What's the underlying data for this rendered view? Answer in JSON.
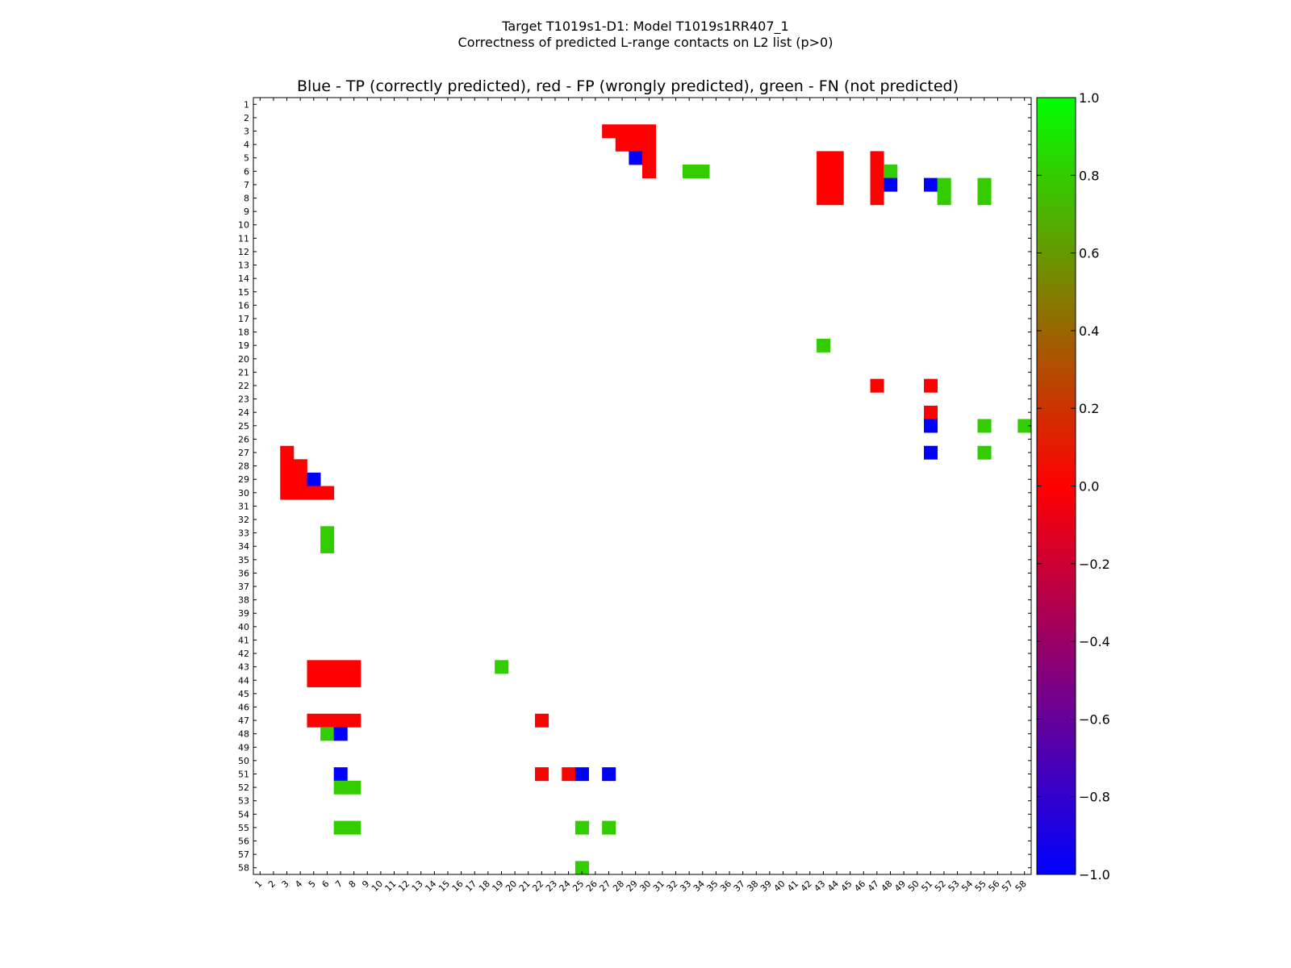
{
  "chart_data": {
    "type": "heatmap",
    "suptitle_line1": "Target T1019s1-D1: Model T1019s1RR407_1",
    "suptitle_line2": "Correctness of predicted L-range contacts on L2 list (p>0)",
    "title": "Blue - TP (correctly predicted), red - FP (wrongly predicted), green - FN (not predicted)",
    "size": 58,
    "x_ticks": [
      1,
      2,
      3,
      4,
      5,
      6,
      7,
      8,
      9,
      10,
      11,
      12,
      13,
      14,
      15,
      16,
      17,
      18,
      19,
      20,
      21,
      22,
      23,
      24,
      25,
      26,
      27,
      28,
      29,
      30,
      31,
      32,
      33,
      34,
      35,
      36,
      37,
      38,
      39,
      40,
      41,
      42,
      43,
      44,
      45,
      46,
      47,
      48,
      49,
      50,
      51,
      52,
      53,
      54,
      55,
      56,
      57,
      58
    ],
    "y_ticks": [
      1,
      2,
      3,
      4,
      5,
      6,
      7,
      8,
      9,
      10,
      11,
      12,
      13,
      14,
      15,
      16,
      17,
      18,
      19,
      20,
      21,
      22,
      23,
      24,
      25,
      26,
      27,
      28,
      29,
      30,
      31,
      32,
      33,
      34,
      35,
      36,
      37,
      38,
      39,
      40,
      41,
      42,
      43,
      44,
      45,
      46,
      47,
      48,
      49,
      50,
      51,
      52,
      53,
      54,
      55,
      56,
      57,
      58
    ],
    "legend": {
      "tp": "Blue",
      "fp": "red",
      "fn": "green"
    },
    "colorbar": {
      "vmin": -1.0,
      "vmax": 1.0,
      "ticks": [
        "1.0",
        "0.8",
        "0.6",
        "0.4",
        "0.2",
        "0.0",
        "−0.2",
        "−0.4",
        "−0.6",
        "−0.8",
        "−1.0"
      ],
      "tick_values": [
        1.0,
        0.8,
        0.6,
        0.4,
        0.2,
        0.0,
        -0.2,
        -0.4,
        -0.6,
        -0.8,
        -1.0
      ],
      "stops": [
        {
          "value": 1.0,
          "color": "#00ff00"
        },
        {
          "value": 0.8,
          "color": "#33cc00"
        },
        {
          "value": 0.4,
          "color": "#996600"
        },
        {
          "value": 0.0,
          "color": "#ff0000"
        },
        {
          "value": -1.0,
          "color": "#0000ff"
        }
      ]
    },
    "cell_colors": {
      "TP": "#0000ff",
      "FP": "#ff0000",
      "FN": "#33cc00"
    },
    "cells": [
      {
        "row": 3,
        "col": 27,
        "type": "FP"
      },
      {
        "row": 3,
        "col": 28,
        "type": "FP"
      },
      {
        "row": 3,
        "col": 29,
        "type": "FP"
      },
      {
        "row": 3,
        "col": 30,
        "type": "FP"
      },
      {
        "row": 4,
        "col": 28,
        "type": "FP"
      },
      {
        "row": 4,
        "col": 29,
        "type": "FP"
      },
      {
        "row": 4,
        "col": 30,
        "type": "FP"
      },
      {
        "row": 5,
        "col": 29,
        "type": "TP"
      },
      {
        "row": 5,
        "col": 30,
        "type": "FP"
      },
      {
        "row": 6,
        "col": 30,
        "type": "FP"
      },
      {
        "row": 6,
        "col": 33,
        "type": "FN"
      },
      {
        "row": 6,
        "col": 34,
        "type": "FN"
      },
      {
        "row": 5,
        "col": 43,
        "type": "FP"
      },
      {
        "row": 5,
        "col": 44,
        "type": "FP"
      },
      {
        "row": 6,
        "col": 43,
        "type": "FP"
      },
      {
        "row": 6,
        "col": 44,
        "type": "FP"
      },
      {
        "row": 7,
        "col": 43,
        "type": "FP"
      },
      {
        "row": 7,
        "col": 44,
        "type": "FP"
      },
      {
        "row": 8,
        "col": 43,
        "type": "FP"
      },
      {
        "row": 8,
        "col": 44,
        "type": "FP"
      },
      {
        "row": 5,
        "col": 47,
        "type": "FP"
      },
      {
        "row": 6,
        "col": 47,
        "type": "FP"
      },
      {
        "row": 7,
        "col": 47,
        "type": "FP"
      },
      {
        "row": 8,
        "col": 47,
        "type": "FP"
      },
      {
        "row": 6,
        "col": 48,
        "type": "FN"
      },
      {
        "row": 7,
        "col": 48,
        "type": "TP"
      },
      {
        "row": 7,
        "col": 51,
        "type": "TP"
      },
      {
        "row": 7,
        "col": 52,
        "type": "FN"
      },
      {
        "row": 8,
        "col": 52,
        "type": "FN"
      },
      {
        "row": 7,
        "col": 55,
        "type": "FN"
      },
      {
        "row": 8,
        "col": 55,
        "type": "FN"
      },
      {
        "row": 19,
        "col": 43,
        "type": "FN"
      },
      {
        "row": 22,
        "col": 47,
        "type": "FP"
      },
      {
        "row": 22,
        "col": 51,
        "type": "FP"
      },
      {
        "row": 24,
        "col": 51,
        "type": "FP"
      },
      {
        "row": 25,
        "col": 51,
        "type": "TP"
      },
      {
        "row": 25,
        "col": 55,
        "type": "FN"
      },
      {
        "row": 25,
        "col": 58,
        "type": "FN"
      },
      {
        "row": 27,
        "col": 51,
        "type": "TP"
      },
      {
        "row": 27,
        "col": 55,
        "type": "FN"
      },
      {
        "row": 27,
        "col": 3,
        "type": "FP"
      },
      {
        "row": 28,
        "col": 3,
        "type": "FP"
      },
      {
        "row": 28,
        "col": 4,
        "type": "FP"
      },
      {
        "row": 29,
        "col": 3,
        "type": "FP"
      },
      {
        "row": 29,
        "col": 4,
        "type": "FP"
      },
      {
        "row": 29,
        "col": 5,
        "type": "TP"
      },
      {
        "row": 30,
        "col": 3,
        "type": "FP"
      },
      {
        "row": 30,
        "col": 4,
        "type": "FP"
      },
      {
        "row": 30,
        "col": 5,
        "type": "FP"
      },
      {
        "row": 30,
        "col": 6,
        "type": "FP"
      },
      {
        "row": 33,
        "col": 6,
        "type": "FN"
      },
      {
        "row": 34,
        "col": 6,
        "type": "FN"
      },
      {
        "row": 43,
        "col": 5,
        "type": "FP"
      },
      {
        "row": 43,
        "col": 6,
        "type": "FP"
      },
      {
        "row": 43,
        "col": 7,
        "type": "FP"
      },
      {
        "row": 43,
        "col": 8,
        "type": "FP"
      },
      {
        "row": 44,
        "col": 5,
        "type": "FP"
      },
      {
        "row": 44,
        "col": 6,
        "type": "FP"
      },
      {
        "row": 44,
        "col": 7,
        "type": "FP"
      },
      {
        "row": 44,
        "col": 8,
        "type": "FP"
      },
      {
        "row": 47,
        "col": 5,
        "type": "FP"
      },
      {
        "row": 47,
        "col": 6,
        "type": "FP"
      },
      {
        "row": 47,
        "col": 7,
        "type": "FP"
      },
      {
        "row": 47,
        "col": 8,
        "type": "FP"
      },
      {
        "row": 48,
        "col": 6,
        "type": "FN"
      },
      {
        "row": 48,
        "col": 7,
        "type": "TP"
      },
      {
        "row": 51,
        "col": 7,
        "type": "TP"
      },
      {
        "row": 52,
        "col": 7,
        "type": "FN"
      },
      {
        "row": 52,
        "col": 8,
        "type": "FN"
      },
      {
        "row": 55,
        "col": 7,
        "type": "FN"
      },
      {
        "row": 55,
        "col": 8,
        "type": "FN"
      },
      {
        "row": 43,
        "col": 19,
        "type": "FN"
      },
      {
        "row": 47,
        "col": 22,
        "type": "FP"
      },
      {
        "row": 51,
        "col": 22,
        "type": "FP"
      },
      {
        "row": 51,
        "col": 24,
        "type": "FP"
      },
      {
        "row": 51,
        "col": 25,
        "type": "TP"
      },
      {
        "row": 55,
        "col": 25,
        "type": "FN"
      },
      {
        "row": 58,
        "col": 25,
        "type": "FN"
      },
      {
        "row": 51,
        "col": 27,
        "type": "TP"
      },
      {
        "row": 55,
        "col": 27,
        "type": "FN"
      }
    ]
  }
}
